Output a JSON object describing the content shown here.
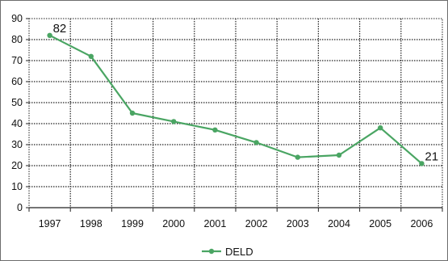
{
  "chart_data": {
    "type": "line",
    "categories": [
      "1997",
      "1998",
      "1999",
      "2000",
      "2001",
      "2002",
      "2003",
      "2004",
      "2005",
      "2006"
    ],
    "series": [
      {
        "name": "DELD",
        "values": [
          82,
          72,
          45,
          41,
          37,
          31,
          24,
          25,
          38,
          21
        ],
        "color": "#4aa563"
      }
    ],
    "data_labels": [
      {
        "category": "1997",
        "text": "82"
      },
      {
        "category": "2006",
        "text": "21"
      }
    ],
    "ylim": [
      0,
      90
    ],
    "yticks": [
      "0",
      "10",
      "20",
      "30",
      "40",
      "50",
      "60",
      "70",
      "80",
      "90"
    ],
    "grid": "dotted horizontal and vertical",
    "legend_position": "bottom-center",
    "title": "",
    "xlabel": "",
    "ylabel": ""
  }
}
